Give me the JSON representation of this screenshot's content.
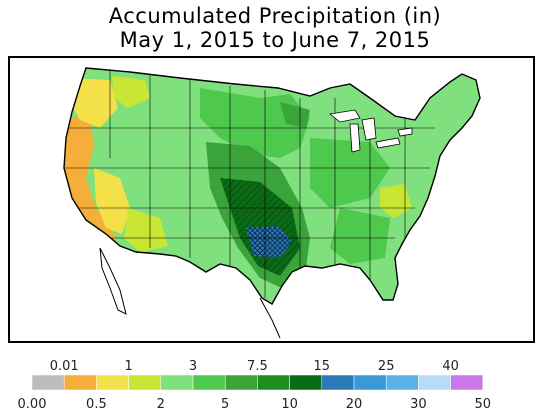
{
  "title": {
    "line1": "Accumulated Precipitation (in)",
    "line2": "May 1, 2015 to June 7, 2015"
  },
  "map": {
    "region": "Contiguous United States",
    "variable": "accumulated precipitation",
    "units": "in"
  },
  "legend": {
    "bins": [
      {
        "color": "#bdbdbd"
      },
      {
        "color": "#f5ae3a"
      },
      {
        "color": "#f4e14a"
      },
      {
        "color": "#c8e633"
      },
      {
        "color": "#7fe07d"
      },
      {
        "color": "#4ec84d"
      },
      {
        "color": "#3aa33a"
      },
      {
        "color": "#1f8e1f"
      },
      {
        "color": "#0a6b15"
      },
      {
        "color": "#2a7ab8"
      },
      {
        "color": "#3a9ad8"
      },
      {
        "color": "#5ab2ea"
      },
      {
        "color": "#b7dcf5"
      },
      {
        "color": "#cc77e8"
      }
    ],
    "top_labels": [
      "0.01",
      "1",
      "3",
      "7.5",
      "15",
      "25",
      "40"
    ],
    "bottom_labels": [
      "0.00",
      "0.5",
      "2",
      "5",
      "10",
      "20",
      "30",
      "50"
    ]
  }
}
